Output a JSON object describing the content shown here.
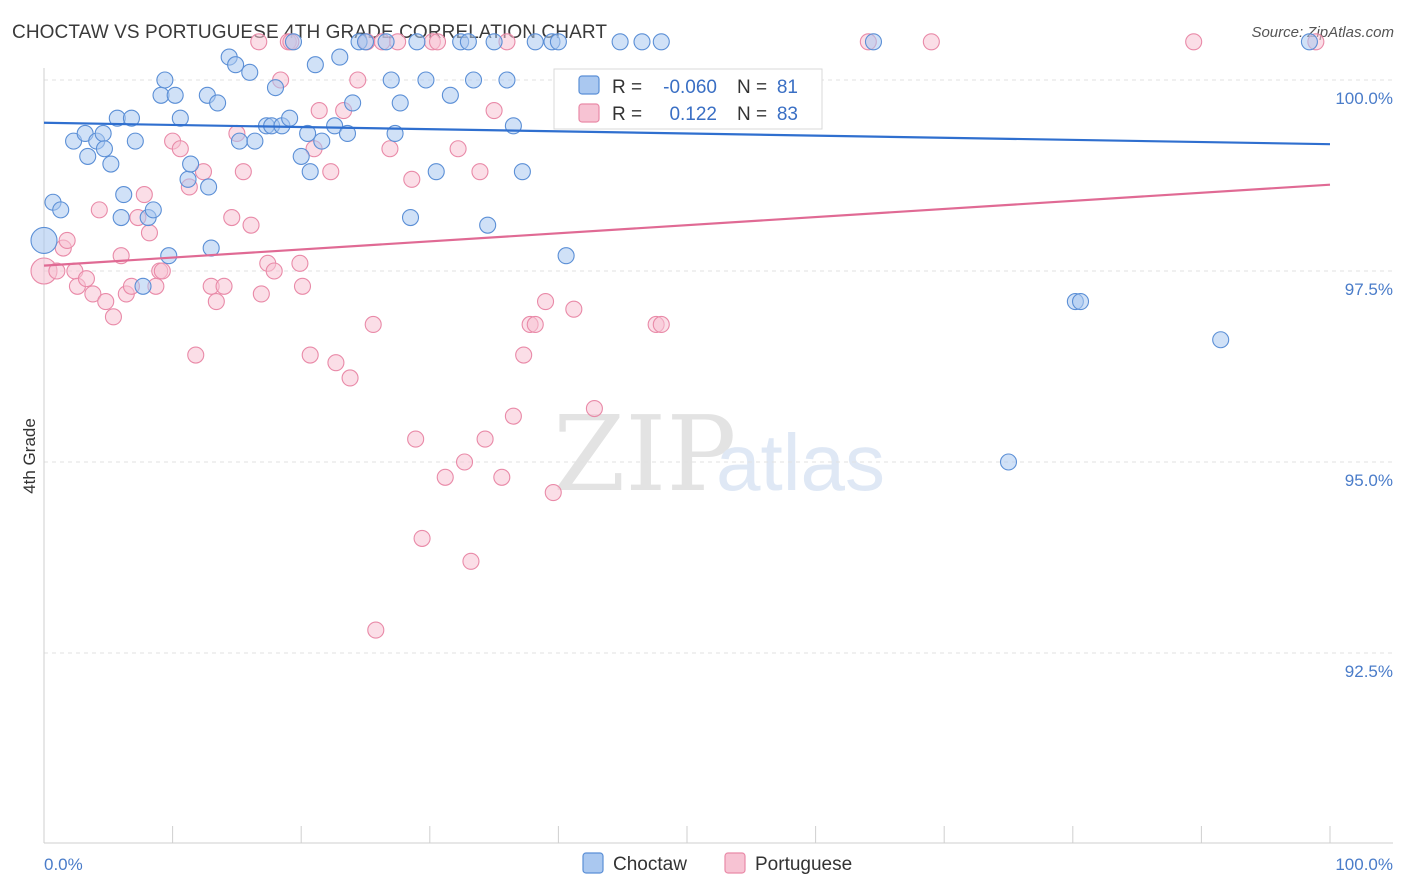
{
  "title": "CHOCTAW VS PORTUGUESE 4TH GRADE CORRELATION CHART",
  "source": "Source: ZipAtlas.com",
  "watermark": {
    "zip": "ZIP",
    "atlas": "atlas"
  },
  "colors": {
    "choctaw_fill": "#aac8f0",
    "choctaw_stroke": "#5b8fd6",
    "choctaw_line": "#2f6fcf",
    "portuguese_fill": "#f7c3d3",
    "portuguese_stroke": "#e98aa8",
    "portuguese_line": "#e06a94",
    "tick_label": "#4a7cc9"
  },
  "legend": {
    "rows": [
      {
        "r_label": "R =",
        "r_value": "-0.060",
        "n_label": "N =",
        "n_value": "81"
      },
      {
        "r_label": "R =",
        "r_value": "0.122",
        "n_label": "N =",
        "n_value": "83"
      }
    ]
  },
  "bottom_legend": [
    "Choctaw",
    "Portuguese"
  ],
  "chart_data": {
    "type": "scatter",
    "title": "CHOCTAW VS PORTUGUESE 4TH GRADE CORRELATION CHART",
    "xlabel": "",
    "ylabel": "4th Grade",
    "xlim": [
      0,
      100
    ],
    "ylim": [
      90.3,
      100.3
    ],
    "x_tick_labels": [
      "0.0%",
      "100.0%"
    ],
    "y_ticks": [
      92.5,
      95.0,
      97.5,
      100.0
    ],
    "y_tick_labels": [
      "92.5%",
      "95.0%",
      "97.5%",
      "100.0%"
    ],
    "series": [
      {
        "name": "Choctaw",
        "r": -0.06,
        "n": 81,
        "trend": {
          "x": [
            0,
            100
          ],
          "y": [
            99.44,
            99.16
          ]
        },
        "points": [
          [
            0,
            97.9
          ],
          [
            0.7,
            98.4
          ],
          [
            1.3,
            98.3
          ],
          [
            2.3,
            99.2
          ],
          [
            3.4,
            99.0
          ],
          [
            3.2,
            99.3
          ],
          [
            4.1,
            99.2
          ],
          [
            4.6,
            99.3
          ],
          [
            4.7,
            99.1
          ],
          [
            5.2,
            98.9
          ],
          [
            5.7,
            99.5
          ],
          [
            6.0,
            98.2
          ],
          [
            6.2,
            98.5
          ],
          [
            6.8,
            99.5
          ],
          [
            7.1,
            99.2
          ],
          [
            7.7,
            97.3
          ],
          [
            8.1,
            98.2
          ],
          [
            8.5,
            98.3
          ],
          [
            9.1,
            99.8
          ],
          [
            9.4,
            100.0
          ],
          [
            9.7,
            97.7
          ],
          [
            10.2,
            99.8
          ],
          [
            10.6,
            99.5
          ],
          [
            11.2,
            98.7
          ],
          [
            11.4,
            98.9
          ],
          [
            12.7,
            99.8
          ],
          [
            12.8,
            98.6
          ],
          [
            13.0,
            97.8
          ],
          [
            13.5,
            99.7
          ],
          [
            14.4,
            100.3
          ],
          [
            14.9,
            100.2
          ],
          [
            15.2,
            99.2
          ],
          [
            16.0,
            100.1
          ],
          [
            16.4,
            99.2
          ],
          [
            17.3,
            99.4
          ],
          [
            18.0,
            99.9
          ],
          [
            17.7,
            99.4
          ],
          [
            18.5,
            99.4
          ],
          [
            19.1,
            99.5
          ],
          [
            19.4,
            100.5
          ],
          [
            20.0,
            99.0
          ],
          [
            20.5,
            99.3
          ],
          [
            20.7,
            98.8
          ],
          [
            21.1,
            100.2
          ],
          [
            21.6,
            99.2
          ],
          [
            22.6,
            99.4
          ],
          [
            23.0,
            100.3
          ],
          [
            23.6,
            99.3
          ],
          [
            24.0,
            99.7
          ],
          [
            24.5,
            100.5
          ],
          [
            25.0,
            100.5
          ],
          [
            26.6,
            100.5
          ],
          [
            27.0,
            100.0
          ],
          [
            27.3,
            99.3
          ],
          [
            27.7,
            99.7
          ],
          [
            28.5,
            98.2
          ],
          [
            29.0,
            100.5
          ],
          [
            29.7,
            100.0
          ],
          [
            30.5,
            98.8
          ],
          [
            31.6,
            99.8
          ],
          [
            32.4,
            100.5
          ],
          [
            33.0,
            100.5
          ],
          [
            33.4,
            100.0
          ],
          [
            34.5,
            98.1
          ],
          [
            35.0,
            100.5
          ],
          [
            36.0,
            100.0
          ],
          [
            36.5,
            99.4
          ],
          [
            37.2,
            98.8
          ],
          [
            38.2,
            100.5
          ],
          [
            39.5,
            100.5
          ],
          [
            40.0,
            100.5
          ],
          [
            40.6,
            97.7
          ],
          [
            44.8,
            100.5
          ],
          [
            46.5,
            100.5
          ],
          [
            48.0,
            100.5
          ],
          [
            64.5,
            100.5
          ],
          [
            75.0,
            95.0
          ],
          [
            80.2,
            97.1
          ],
          [
            80.6,
            97.1
          ],
          [
            91.5,
            96.6
          ],
          [
            98.4,
            100.5
          ]
        ]
      },
      {
        "name": "Portuguese",
        "r": 0.122,
        "n": 83,
        "trend": {
          "x": [
            0,
            100
          ],
          "y": [
            97.57,
            98.63
          ]
        },
        "points": [
          [
            0,
            97.5
          ],
          [
            1.0,
            97.5
          ],
          [
            1.5,
            97.8
          ],
          [
            1.8,
            97.9
          ],
          [
            2.4,
            97.5
          ],
          [
            2.6,
            97.3
          ],
          [
            3.3,
            97.4
          ],
          [
            3.8,
            97.2
          ],
          [
            4.3,
            98.3
          ],
          [
            4.8,
            97.1
          ],
          [
            5.4,
            96.9
          ],
          [
            6.0,
            97.7
          ],
          [
            6.4,
            97.2
          ],
          [
            6.8,
            97.3
          ],
          [
            7.3,
            98.2
          ],
          [
            7.8,
            98.5
          ],
          [
            8.2,
            98.0
          ],
          [
            8.7,
            97.3
          ],
          [
            9.0,
            97.5
          ],
          [
            9.2,
            97.5
          ],
          [
            10.0,
            99.2
          ],
          [
            10.6,
            99.1
          ],
          [
            11.3,
            98.6
          ],
          [
            11.8,
            96.4
          ],
          [
            12.4,
            98.8
          ],
          [
            13.0,
            97.3
          ],
          [
            13.4,
            97.1
          ],
          [
            14.0,
            97.3
          ],
          [
            14.6,
            98.2
          ],
          [
            15.0,
            99.3
          ],
          [
            15.5,
            98.8
          ],
          [
            16.1,
            98.1
          ],
          [
            16.7,
            100.5
          ],
          [
            16.9,
            97.2
          ],
          [
            17.4,
            97.6
          ],
          [
            17.9,
            97.5
          ],
          [
            18.4,
            100.0
          ],
          [
            19.0,
            100.5
          ],
          [
            19.2,
            100.5
          ],
          [
            19.9,
            97.6
          ],
          [
            20.1,
            97.3
          ],
          [
            20.7,
            96.4
          ],
          [
            21.0,
            99.1
          ],
          [
            21.4,
            99.6
          ],
          [
            22.3,
            98.8
          ],
          [
            22.7,
            96.3
          ],
          [
            23.3,
            99.6
          ],
          [
            23.8,
            96.1
          ],
          [
            24.4,
            100.0
          ],
          [
            25.1,
            100.5
          ],
          [
            25.6,
            96.8
          ],
          [
            25.8,
            92.8
          ],
          [
            26.3,
            100.5
          ],
          [
            26.9,
            99.1
          ],
          [
            27.5,
            100.5
          ],
          [
            28.6,
            98.7
          ],
          [
            28.9,
            95.3
          ],
          [
            29.4,
            94.0
          ],
          [
            30.2,
            100.5
          ],
          [
            30.6,
            100.5
          ],
          [
            31.2,
            94.8
          ],
          [
            32.2,
            99.1
          ],
          [
            32.7,
            95.0
          ],
          [
            33.2,
            93.7
          ],
          [
            33.9,
            98.8
          ],
          [
            34.3,
            95.3
          ],
          [
            35.0,
            99.6
          ],
          [
            35.6,
            94.8
          ],
          [
            36.0,
            100.5
          ],
          [
            36.5,
            95.6
          ],
          [
            37.3,
            96.4
          ],
          [
            37.8,
            96.8
          ],
          [
            38.2,
            96.8
          ],
          [
            39.0,
            97.1
          ],
          [
            39.6,
            94.6
          ],
          [
            41.2,
            97.0
          ],
          [
            42.8,
            95.7
          ],
          [
            47.6,
            96.8
          ],
          [
            48.0,
            96.8
          ],
          [
            64.1,
            100.5
          ],
          [
            69.0,
            100.5
          ],
          [
            89.4,
            100.5
          ],
          [
            98.9,
            100.5
          ]
        ]
      }
    ]
  }
}
